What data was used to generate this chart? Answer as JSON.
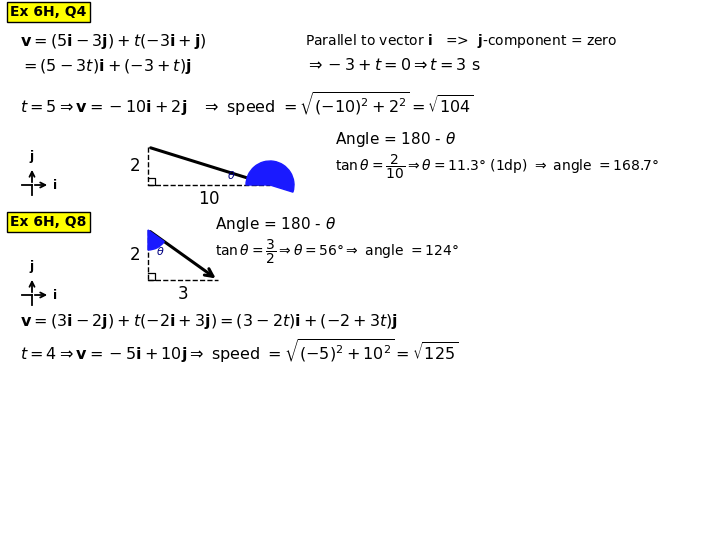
{
  "bg_color": "#ffffff",
  "title_box1": "Ex 6H, Q4",
  "title_box2": "Ex 6H, Q8",
  "box_color": "#ffff00",
  "text_color": "#000000",
  "blue_fill": "#1a1aff",
  "fig_width": 7.2,
  "fig_height": 5.4,
  "dpi": 100,
  "q4_line1": "$\\mathbf{v} = (5\\mathbf{i}-3\\mathbf{j})+t(-3\\mathbf{i}+\\mathbf{j})$",
  "q4_line2": "$= (5-3t)\\mathbf{i}+(-3+t)\\mathbf{j}$",
  "q4_right1": "Parallel to vector $\\mathbf{i}$   =>  $\\mathbf{j}$-component = zero",
  "q4_right2": "$\\Rightarrow -3+t = 0 \\Rightarrow t = 3$ s",
  "q4_line3": "$t = 5 \\Rightarrow \\mathbf{v} = -10\\mathbf{i}+2\\mathbf{j}$   $\\Rightarrow$ speed $= \\sqrt{(-10)^2+2^2} = \\sqrt{104}$",
  "q4_angle": "Angle = 180 - $\\theta$",
  "q4_tan": "$\\tan\\theta = \\dfrac{2}{10} \\Rightarrow \\theta = 11.3°$ (1dp) $\\Rightarrow$ angle $= 168.7°$",
  "q8_angle": "Angle = 180 - $\\theta$",
  "q8_tan": "$\\tan\\theta = \\dfrac{3}{2} \\Rightarrow \\theta = 56°\\Rightarrow$ angle $= 124°$",
  "q8_line1": "$\\mathbf{v} = (3\\mathbf{i}-2\\mathbf{j})+t(-2\\mathbf{i}+3\\mathbf{j}) = (3-2t)\\mathbf{i}+(-2+3t)\\mathbf{j}$",
  "q8_line2": "$t = 4 \\Rightarrow \\mathbf{v} = -5\\mathbf{i}+10\\mathbf{j} \\Rightarrow$ speed $= \\sqrt{(-5)^2+10^2} = \\sqrt{125}$"
}
